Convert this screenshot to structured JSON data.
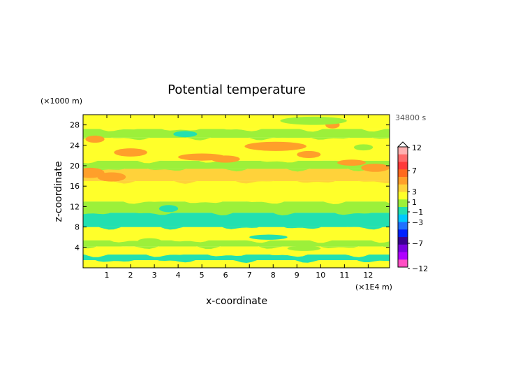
{
  "chart_data": {
    "type": "heatmap",
    "title": "Potential temperature",
    "xlabel": "x-coordinate",
    "ylabel": "z-coordinate",
    "x_unit": "(×1E4 m)",
    "y_unit": "(×1000 m)",
    "time_label": "34800 s",
    "xlim": [
      0,
      12.9
    ],
    "ylim": [
      0,
      30
    ],
    "x_ticks": [
      1,
      2,
      3,
      4,
      5,
      6,
      7,
      8,
      9,
      10,
      11,
      12
    ],
    "y_ticks": [
      4,
      8,
      12,
      16,
      20,
      24,
      28
    ],
    "colorbar": {
      "levels": [
        -12,
        -7,
        -3,
        -1,
        1,
        3,
        7,
        12
      ],
      "tick_labels": [
        "12",
        "7",
        "3",
        "1",
        "−1",
        "−3",
        "−7",
        "−12"
      ],
      "colors": {
        "-12": "#ff4fc4",
        "-10": "#b000ff",
        "-8": "#7a00e0",
        "-7": "#3a0090",
        "-5": "#0020ff",
        "-3": "#2070ff",
        "-2": "#00c8ff",
        "-1": "#22e0b0",
        "0": "#9cf03a",
        "1": "#ffff2a",
        "2": "#ffd23a",
        "3": "#ff9f2a",
        "5": "#ff6a1f",
        "7": "#ff3a3a",
        "9": "#ff6a6a",
        "12": "#ffb0b0"
      }
    },
    "bands": [
      {
        "z": [
          0,
          1.5
        ],
        "value": 1
      },
      {
        "z": [
          1.5,
          2.6
        ],
        "value": -1
      },
      {
        "z": [
          2.6,
          4.2
        ],
        "value": 1
      },
      {
        "z": [
          4.2,
          5.4
        ],
        "value": 0
      },
      {
        "z": [
          5.4,
          8.0
        ],
        "value": 1
      },
      {
        "z": [
          8.0,
          10.8
        ],
        "value": -1
      },
      {
        "z": [
          10.8,
          13.0
        ],
        "value": 0
      },
      {
        "z": [
          13.0,
          17.0
        ],
        "value": 1
      },
      {
        "z": [
          17.0,
          19.4
        ],
        "value": 2
      },
      {
        "z": [
          19.4,
          21.0
        ],
        "value": 0
      },
      {
        "z": [
          21.0,
          25.5
        ],
        "value": 1
      },
      {
        "z": [
          25.5,
          27.2
        ],
        "value": 0
      },
      {
        "z": [
          27.2,
          30.0
        ],
        "value": 1
      }
    ],
    "patches": [
      {
        "x": 0.3,
        "z": 18.6,
        "rx": 0.6,
        "rz": 1.0,
        "value": 3
      },
      {
        "x": 1.2,
        "z": 17.8,
        "rx": 0.6,
        "rz": 0.9,
        "value": 3
      },
      {
        "x": 2.0,
        "z": 22.6,
        "rx": 0.7,
        "rz": 0.8,
        "value": 3
      },
      {
        "x": 0.5,
        "z": 25.2,
        "rx": 0.4,
        "rz": 0.7,
        "value": 3
      },
      {
        "x": 5.0,
        "z": 21.7,
        "rx": 1.0,
        "rz": 0.7,
        "value": 3
      },
      {
        "x": 6.0,
        "z": 21.3,
        "rx": 0.6,
        "rz": 0.7,
        "value": 3
      },
      {
        "x": 8.1,
        "z": 23.8,
        "rx": 1.3,
        "rz": 0.9,
        "value": 3
      },
      {
        "x": 9.5,
        "z": 22.2,
        "rx": 0.5,
        "rz": 0.7,
        "value": 3
      },
      {
        "x": 11.3,
        "z": 20.6,
        "rx": 0.6,
        "rz": 0.6,
        "value": 3
      },
      {
        "x": 12.3,
        "z": 19.6,
        "rx": 0.6,
        "rz": 0.8,
        "value": 3
      },
      {
        "x": 10.5,
        "z": 28.0,
        "rx": 0.3,
        "rz": 0.7,
        "value": 3
      },
      {
        "x": 4.3,
        "z": 26.2,
        "rx": 0.5,
        "rz": 0.6,
        "value": -1
      },
      {
        "x": 2.8,
        "z": 5.2,
        "rx": 0.5,
        "rz": 0.6,
        "value": 0
      },
      {
        "x": 9.3,
        "z": 3.8,
        "rx": 0.7,
        "rz": 0.5,
        "value": 0
      },
      {
        "x": 3.6,
        "z": 11.6,
        "rx": 0.4,
        "rz": 0.7,
        "value": -1
      },
      {
        "x": 7.8,
        "z": 6.0,
        "rx": 0.8,
        "rz": 0.5,
        "value": -1
      },
      {
        "x": 11.8,
        "z": 23.6,
        "rx": 0.4,
        "rz": 0.6,
        "value": 0
      },
      {
        "x": 9.7,
        "z": 28.8,
        "rx": 1.4,
        "rz": 0.8,
        "value": 0
      }
    ]
  }
}
